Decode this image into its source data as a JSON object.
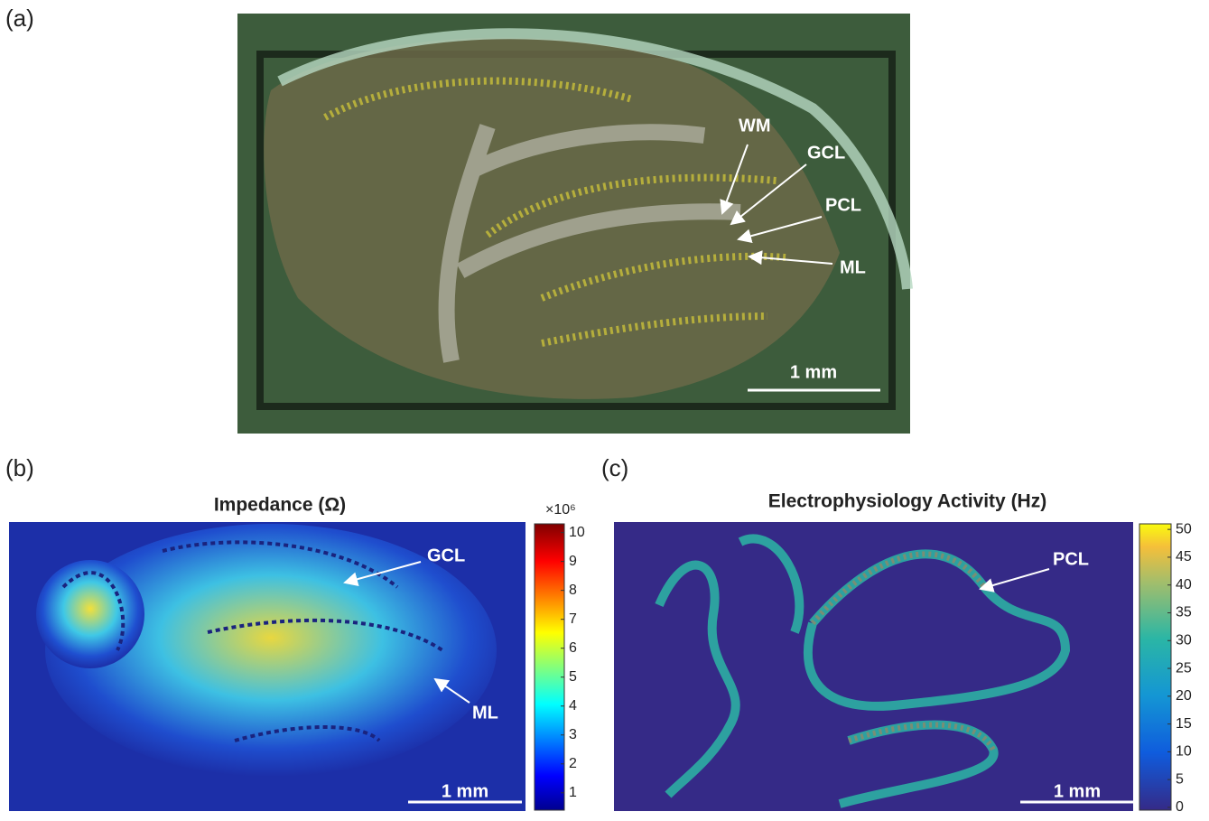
{
  "panels": [
    {
      "label": "(a)",
      "annotations": [
        "WM",
        "GCL",
        "PCL",
        "ML"
      ],
      "scale_bar": "1 mm"
    },
    {
      "label": "(b)",
      "title": "Impedance (Ω)",
      "annotations": [
        "GCL",
        "ML"
      ],
      "scale_bar": "1 mm",
      "colorbar": {
        "multiplier": "×10⁶",
        "lim": [
          0.4,
          10.3
        ],
        "ticks": [
          1,
          2,
          3,
          4,
          5,
          6,
          7,
          8,
          9,
          10
        ]
      }
    },
    {
      "label": "(c)",
      "title": "Electrophysiology Activity (Hz)",
      "annotations": [
        "PCL"
      ],
      "scale_bar": "1 mm",
      "colorbar": {
        "lim": [
          -0.5,
          51
        ],
        "ticks": [
          0,
          5,
          10,
          15,
          20,
          25,
          30,
          35,
          40,
          45,
          50
        ]
      }
    }
  ]
}
